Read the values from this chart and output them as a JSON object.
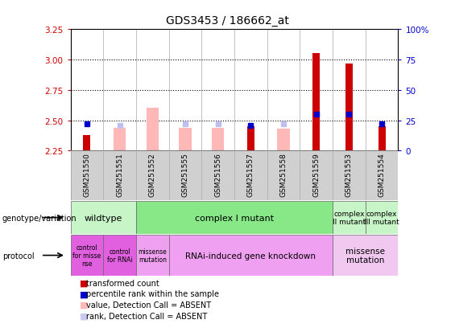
{
  "title": "GDS3453 / 186662_at",
  "samples": [
    "GSM251550",
    "GSM251551",
    "GSM251552",
    "GSM251555",
    "GSM251556",
    "GSM251557",
    "GSM251558",
    "GSM251559",
    "GSM251553",
    "GSM251554"
  ],
  "ylim_left": [
    2.25,
    3.25
  ],
  "ylim_right": [
    0,
    100
  ],
  "yticks_left": [
    2.25,
    2.5,
    2.75,
    3.0,
    3.25
  ],
  "yticks_right": [
    0,
    25,
    50,
    75,
    100
  ],
  "ytick_labels_right": [
    "0",
    "25",
    "50",
    "75",
    "100%"
  ],
  "red_bars": [
    2.375,
    0,
    0,
    0,
    0,
    2.45,
    0,
    3.05,
    2.97,
    2.45
  ],
  "pink_bars": [
    0,
    2.44,
    2.6,
    2.44,
    2.44,
    0,
    2.43,
    0,
    0,
    0
  ],
  "blue_squares": [
    2.47,
    0,
    0,
    0,
    0,
    2.46,
    0,
    2.55,
    2.55,
    2.47
  ],
  "lightblue_squares": [
    0,
    2.46,
    0,
    2.47,
    2.47,
    0,
    2.47,
    0,
    0,
    0
  ],
  "red_bar_width": 0.22,
  "pink_bar_width": 0.38,
  "base_value": 2.25,
  "left_axis_color": "#cc0000",
  "right_axis_color": "#0000cc",
  "genotype_groups": [
    {
      "label": "wildtype",
      "start": 0,
      "end": 2,
      "color": "#c8f5c8"
    },
    {
      "label": "complex I mutant",
      "start": 2,
      "end": 8,
      "color": "#88e888"
    },
    {
      "label": "complex\nII mutant",
      "start": 8,
      "end": 9,
      "color": "#c8f5c8"
    },
    {
      "label": "complex\nIII mutant",
      "start": 9,
      "end": 10,
      "color": "#c8f5c8"
    }
  ],
  "protocol_groups": [
    {
      "label": "control\nfor misse\nnse",
      "start": 0,
      "end": 1,
      "color": "#e060e0"
    },
    {
      "label": "control\nfor RNAi",
      "start": 1,
      "end": 2,
      "color": "#e060e0"
    },
    {
      "label": "missense\nmutation",
      "start": 2,
      "end": 3,
      "color": "#f0a0f0"
    },
    {
      "label": "RNAi-induced gene knockdown",
      "start": 3,
      "end": 8,
      "color": "#f0a0f0"
    },
    {
      "label": "missense\nmutation",
      "start": 8,
      "end": 10,
      "color": "#f0c8f0"
    }
  ],
  "legend_items": [
    {
      "color": "#cc0000",
      "label": "transformed count"
    },
    {
      "color": "#0000cc",
      "label": "percentile rank within the sample"
    },
    {
      "color": "#ffb8b8",
      "label": "value, Detection Call = ABSENT"
    },
    {
      "color": "#c8c8f0",
      "label": "rank, Detection Call = ABSENT"
    }
  ]
}
